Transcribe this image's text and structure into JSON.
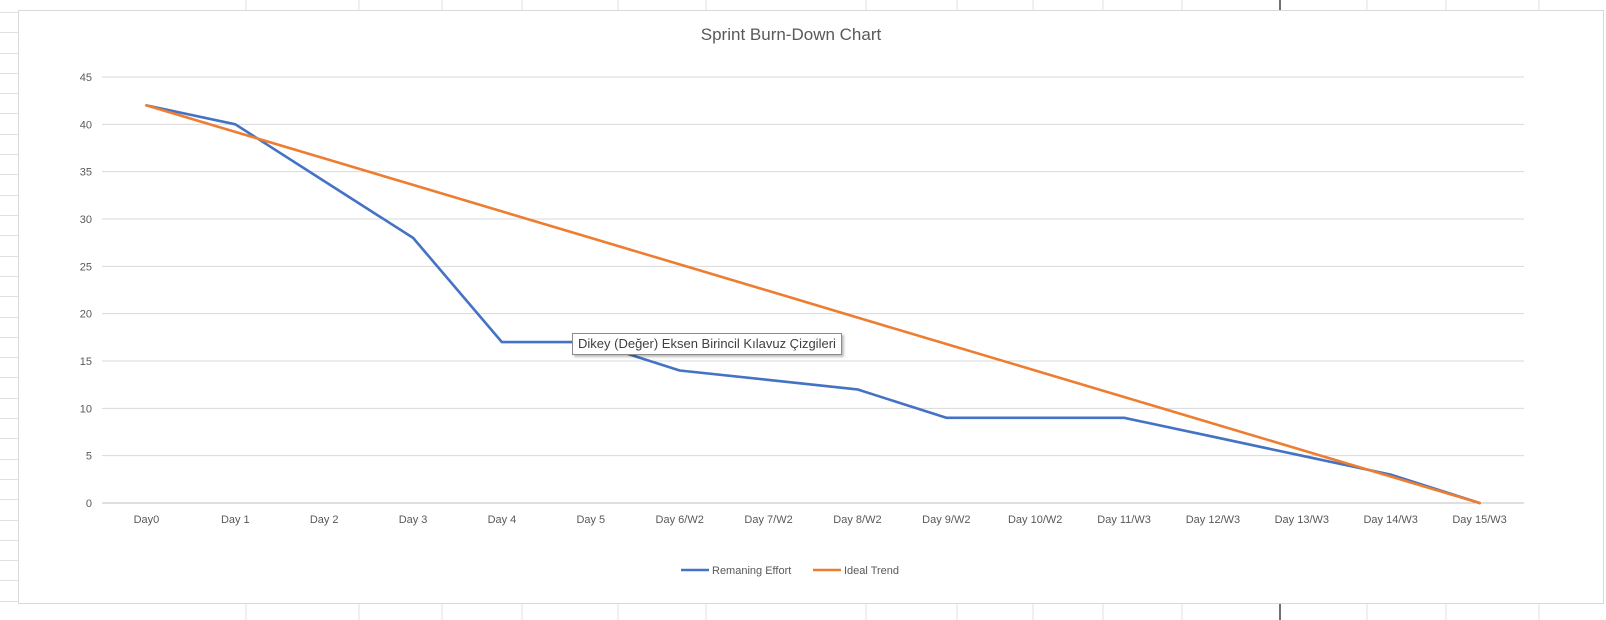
{
  "chart_data": {
    "type": "line",
    "title": "Sprint Burn-Down Chart",
    "categories": [
      "Day0",
      "Day 1",
      "Day 2",
      "Day 3",
      "Day 4",
      "Day 5",
      "Day 6/W2",
      "Day 7/W2",
      "Day 8/W2",
      "Day 9/W2",
      "Day 10/W2",
      "Day 11/W3",
      "Day 12/W3",
      "Day 13/W3",
      "Day 14/W3",
      "Day 15/W3"
    ],
    "ylim": [
      0,
      45
    ],
    "yticks": [
      0,
      5,
      10,
      15,
      20,
      25,
      30,
      35,
      40,
      45
    ],
    "grid": true,
    "legend_position": "bottom",
    "series": [
      {
        "name": "Remaning Effort",
        "color": "#4472c4",
        "values": [
          42,
          40,
          34,
          28,
          17,
          17,
          14,
          13,
          12,
          9,
          9,
          9,
          7,
          5,
          3,
          0
        ]
      },
      {
        "name": "Ideal Trend",
        "color": "#ed7d31",
        "values": [
          42,
          39.2,
          36.4,
          33.6,
          30.8,
          28,
          25.2,
          22.4,
          19.6,
          16.8,
          14,
          11.2,
          8.4,
          5.6,
          2.8,
          0
        ]
      }
    ]
  },
  "tooltip": {
    "text": "Dikey (Değer) Eksen Birincil Kılavuz Çizgileri"
  }
}
